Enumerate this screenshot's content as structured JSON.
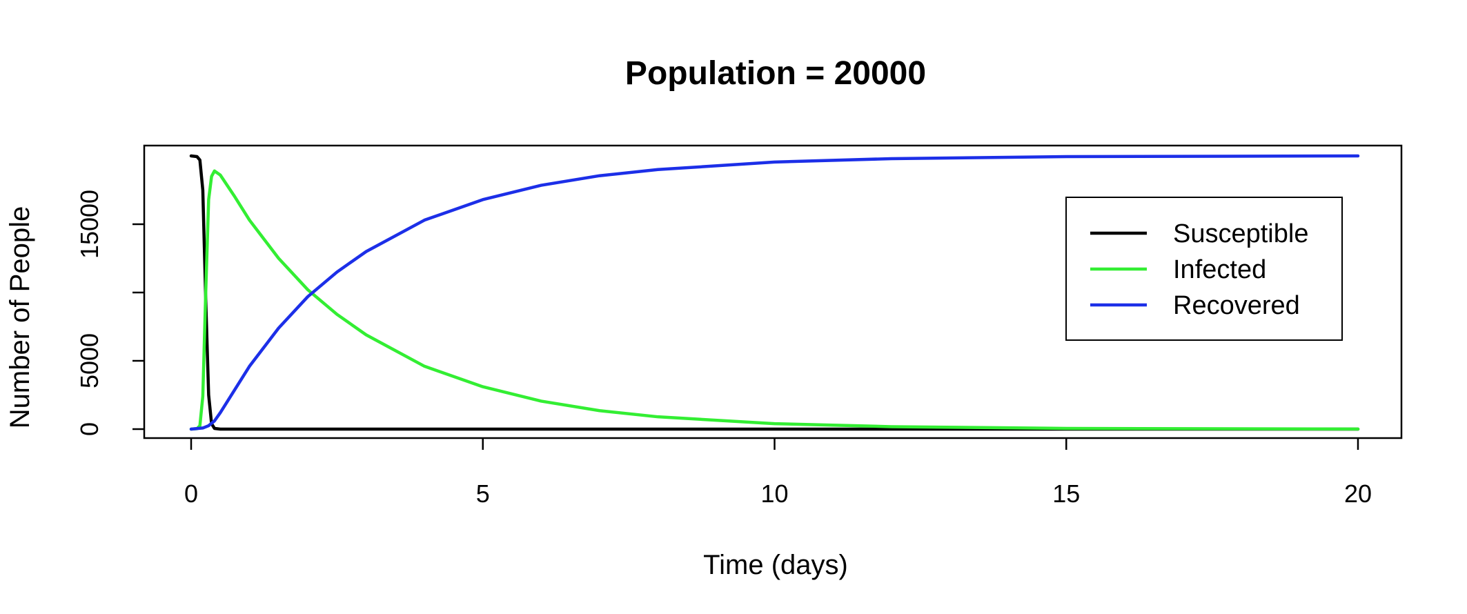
{
  "chart_data": {
    "type": "line",
    "title": "Population = 20000",
    "xlabel": "Time (days)",
    "ylabel": "Number of People",
    "xlim": [
      0,
      20
    ],
    "ylim": [
      0,
      20000
    ],
    "x_ticks": [
      0,
      5,
      10,
      15,
      20
    ],
    "y_ticks": [
      0,
      5000,
      15000
    ],
    "y_tick_marks": [
      0,
      5000,
      10000,
      15000
    ],
    "grid": false,
    "legend_position": "top-right",
    "series": [
      {
        "name": "Susceptible",
        "color": "#000000",
        "x": [
          0,
          0.1,
          0.15,
          0.2,
          0.25,
          0.3,
          0.35,
          0.4,
          0.5,
          1,
          5,
          10,
          15,
          20
        ],
        "y": [
          20000,
          19950,
          19700,
          17500,
          9500,
          2500,
          400,
          50,
          0,
          0,
          0,
          0,
          0,
          0
        ]
      },
      {
        "name": "Infected",
        "color": "#33ee33",
        "x": [
          0,
          0.1,
          0.15,
          0.2,
          0.25,
          0.3,
          0.35,
          0.4,
          0.5,
          0.75,
          1,
          1.5,
          2,
          2.5,
          3,
          4,
          5,
          6,
          7,
          8,
          10,
          12,
          15,
          20
        ],
        "y": [
          0,
          30,
          250,
          2400,
          10000,
          16800,
          18500,
          18900,
          18600,
          17000,
          15300,
          12500,
          10200,
          8400,
          6900,
          4600,
          3100,
          2050,
          1350,
          900,
          400,
          180,
          50,
          5
        ]
      },
      {
        "name": "Recovered",
        "color": "#1c2fe8",
        "x": [
          0,
          0.2,
          0.3,
          0.4,
          0.5,
          0.75,
          1,
          1.5,
          2,
          2.5,
          3,
          4,
          5,
          6,
          7,
          8,
          10,
          12,
          15,
          20
        ],
        "y": [
          0,
          80,
          250,
          600,
          1200,
          2900,
          4600,
          7400,
          9700,
          11500,
          13000,
          15300,
          16800,
          17850,
          18550,
          19000,
          19550,
          19800,
          19950,
          20000
        ]
      }
    ]
  }
}
